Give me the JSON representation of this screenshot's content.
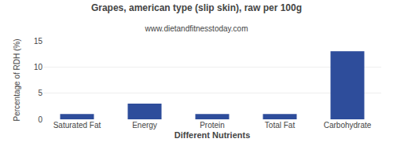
{
  "chart_data": {
    "type": "bar",
    "title": "Grapes, american type (slip skin), raw per 100g",
    "subtitle": "www.dietandfitnesstoday.com",
    "categories": [
      "Saturated Fat",
      "Energy",
      "Protein",
      "Total Fat",
      "Carbohydrate"
    ],
    "values": [
      1.0,
      3.0,
      1.0,
      1.0,
      13.0
    ],
    "color": "#2e4d9b",
    "xlabel": "Different Nutrients",
    "ylabel": "Percentage of RDH (%)",
    "ylim": [
      0,
      15
    ],
    "yticks": [
      0,
      5,
      10,
      15
    ],
    "grid": true
  }
}
